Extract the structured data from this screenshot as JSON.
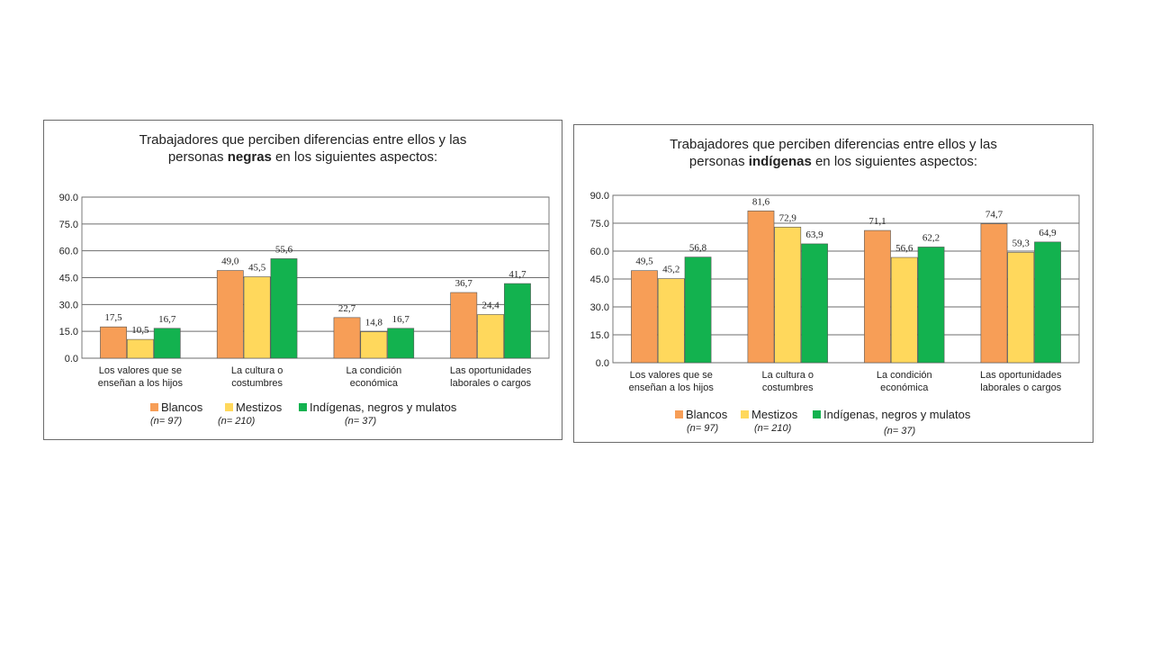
{
  "colors": {
    "blancos": "#F79E57",
    "mestizos": "#FFD85C",
    "indigenas": "#13B24F"
  },
  "legend": {
    "items": [
      "Blancos",
      "Mestizos",
      "Indígenas, negros y mulatos"
    ],
    "n": [
      "(n= 97)",
      "(n= 210)",
      "(n= 37)"
    ]
  },
  "panel_left": {
    "title_l1": "Trabajadores que perciben diferencias entre ellos y las",
    "title_pre": "personas ",
    "title_bold": "negras",
    "title_post": " en los siguientes aspectos:"
  },
  "panel_right": {
    "title_l1": "Trabajadores que perciben diferencias entre ellos y las",
    "title_pre": "personas ",
    "title_bold": "indígenas",
    "title_post": " en los siguientes aspectos:"
  },
  "chart_data": [
    {
      "type": "bar",
      "title": "Trabajadores que perciben diferencias entre ellos y las personas negras en los siguientes aspectos:",
      "categories": [
        [
          "Los valores que se",
          "enseñan a los hijos"
        ],
        [
          "La cultura o",
          "costumbres"
        ],
        [
          "La condición",
          "económica"
        ],
        [
          "Las oportunidades",
          "laborales o cargos"
        ]
      ],
      "series": [
        {
          "name": "Blancos",
          "values": [
            17.5,
            49.0,
            22.7,
            36.7
          ],
          "labels": [
            "17,5",
            "49,0",
            "22,7",
            "36,7"
          ]
        },
        {
          "name": "Mestizos",
          "values": [
            10.5,
            45.5,
            14.8,
            24.4
          ],
          "labels": [
            "10,5",
            "45,5",
            "14,8",
            "24,4"
          ]
        },
        {
          "name": "Indígenas, negros y mulatos",
          "values": [
            16.7,
            55.6,
            16.7,
            41.7
          ],
          "labels": [
            "16,7",
            "55,6",
            "16,7",
            "41,7"
          ]
        }
      ],
      "yticks": [
        "0.0",
        "15.0",
        "30.0",
        "45.0",
        "60.0",
        "75.0",
        "90.0"
      ],
      "ylim": [
        0,
        90
      ],
      "grid": true,
      "legend_position": "bottom"
    },
    {
      "type": "bar",
      "title": "Trabajadores que perciben diferencias entre ellos y las personas indígenas en los siguientes aspectos:",
      "categories": [
        [
          "Los valores que se",
          "enseñan a los hijos"
        ],
        [
          "La cultura o",
          "costumbres"
        ],
        [
          "La condición",
          "económica"
        ],
        [
          "Las oportunidades",
          "laborales o cargos"
        ]
      ],
      "series": [
        {
          "name": "Blancos",
          "values": [
            49.5,
            81.6,
            71.1,
            74.7
          ],
          "labels": [
            "49,5",
            "81,6",
            "71,1",
            "74,7"
          ]
        },
        {
          "name": "Mestizos",
          "values": [
            45.2,
            72.9,
            56.6,
            59.3
          ],
          "labels": [
            "45,2",
            "72,9",
            "56,6",
            "59,3"
          ]
        },
        {
          "name": "Indígenas, negros y mulatos",
          "values": [
            56.8,
            63.9,
            62.2,
            64.9
          ],
          "labels": [
            "56,8",
            "63,9",
            "62,2",
            "64,9"
          ]
        }
      ],
      "yticks": [
        "0.0",
        "15.0",
        "30.0",
        "45.0",
        "60.0",
        "75.0",
        "90.0"
      ],
      "ylim": [
        0,
        90
      ],
      "grid": true,
      "legend_position": "bottom"
    }
  ]
}
